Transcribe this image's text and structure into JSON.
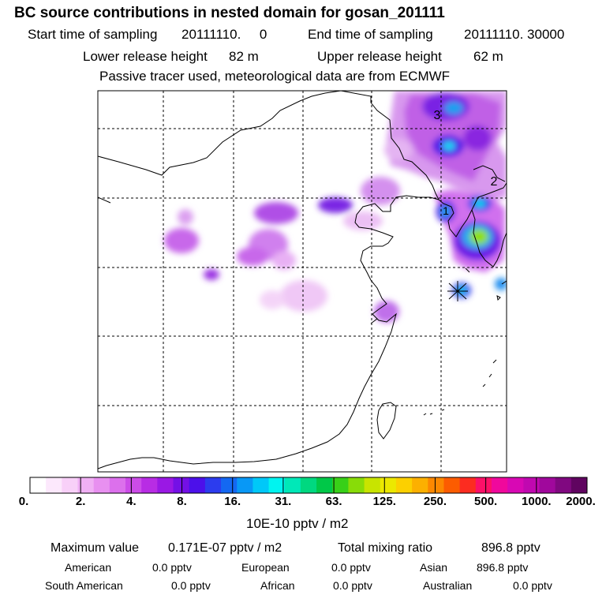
{
  "header": {
    "title": "BC  source contributions in nested domain for gosan_201111",
    "start_label": "Start time of sampling",
    "start_value": "20111110.     0",
    "end_label": "End time of sampling",
    "end_value": "20111110. 30000",
    "lower_label": "Lower release height",
    "lower_value": "82 m",
    "upper_label": "Upper release height",
    "upper_value": "62 m",
    "note": "Passive tracer used, meteorological data are from ECMWF"
  },
  "map": {
    "labels": [
      "3",
      "2",
      "1"
    ],
    "release_marker": "star-marker"
  },
  "colorbar": {
    "colors": [
      "#ffffff",
      "#fce8fc",
      "#f8d0f8",
      "#f0b0f4",
      "#e890f0",
      "#dc70ec",
      "#cc4ce8",
      "#b82ce4",
      "#9a18e4",
      "#7410e6",
      "#4c10ea",
      "#2c3cee",
      "#1468f2",
      "#0898f6",
      "#00c8f8",
      "#00f4f0",
      "#00e8b8",
      "#00d880",
      "#00c848",
      "#38d018",
      "#88dc08",
      "#c8e400",
      "#ece800",
      "#fcd000",
      "#fcb000",
      "#fc8800",
      "#fc5c00",
      "#fc2c20",
      "#fc1068",
      "#f0089c",
      "#d808b4",
      "#c008b0",
      "#a0089c",
      "#800880",
      "#600460"
    ],
    "tick_labels": [
      "0.",
      "2.",
      "4.",
      "8.",
      "16.",
      "31.",
      "63.",
      "125.",
      "250.",
      "500.",
      "1000.",
      "2000."
    ],
    "unit": "10E-10 pptv / m2"
  },
  "stats": {
    "max_label": "Maximum value",
    "max_value": "0.171E-07 pptv / m2",
    "total_label": "Total mixing ratio",
    "total_value": "896.8 pptv",
    "regions": [
      {
        "name": "American",
        "value": "0.0 pptv"
      },
      {
        "name": "European",
        "value": "0.0 pptv"
      },
      {
        "name": "Asian",
        "value": "896.8 pptv"
      },
      {
        "name": "South American",
        "value": "0.0 pptv"
      },
      {
        "name": "African",
        "value": "0.0 pptv"
      },
      {
        "name": "Australian",
        "value": "0.0 pptv"
      }
    ]
  }
}
